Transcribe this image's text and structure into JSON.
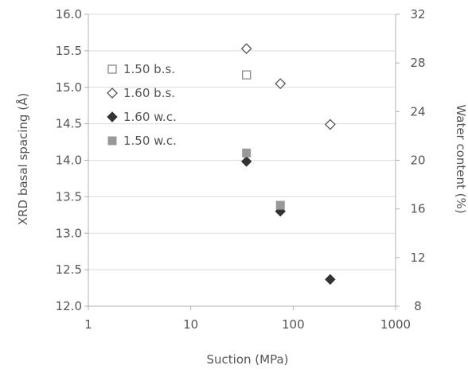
{
  "chart_data": {
    "type": "scatter",
    "xlabel": "Suction (MPa)",
    "ylabel": "XRD basal spacing (Å)",
    "y2label": "Water content (%)",
    "xscale": "log",
    "xlim": [
      1,
      1000
    ],
    "ylim": [
      12.0,
      16.0
    ],
    "y2lim": [
      8,
      32
    ],
    "x_ticks": [
      1,
      10,
      100,
      1000
    ],
    "x_tick_labels": [
      "1",
      "10",
      "100",
      "1000"
    ],
    "y_ticks": [
      12.0,
      12.5,
      13.0,
      13.5,
      14.0,
      14.5,
      15.0,
      15.5,
      16.0
    ],
    "y_tick_labels": [
      "12.0",
      "12.5",
      "13.0",
      "13.5",
      "14.0",
      "14.5",
      "15.0",
      "15.5",
      "16.0"
    ],
    "y2_ticks": [
      8,
      12,
      16,
      20,
      24,
      28,
      32
    ],
    "y2_tick_labels": [
      "8",
      "12",
      "16",
      "20",
      "24",
      "28",
      "32"
    ],
    "grid": "horizontal",
    "legend_position": "top-left",
    "series": [
      {
        "name": "1.50 b.s.",
        "marker": "open-square",
        "axis": "left",
        "color": "#888888",
        "x": [
          35
        ],
        "y": [
          15.17
        ]
      },
      {
        "name": "1.60 b.s.",
        "marker": "open-diamond",
        "axis": "left",
        "color": "#555555",
        "x": [
          35,
          75,
          230
        ],
        "y": [
          15.53,
          15.05,
          14.49
        ]
      },
      {
        "name": "1.60 w.c.",
        "marker": "filled-diamond",
        "axis": "right",
        "color": "#333333",
        "x": [
          35,
          75,
          230
        ],
        "y": [
          19.9,
          15.8,
          10.2
        ]
      },
      {
        "name": "1.50 w.c.",
        "marker": "filled-square",
        "axis": "right",
        "color": "#999999",
        "x": [
          35,
          75
        ],
        "y": [
          20.6,
          16.3
        ]
      }
    ]
  }
}
